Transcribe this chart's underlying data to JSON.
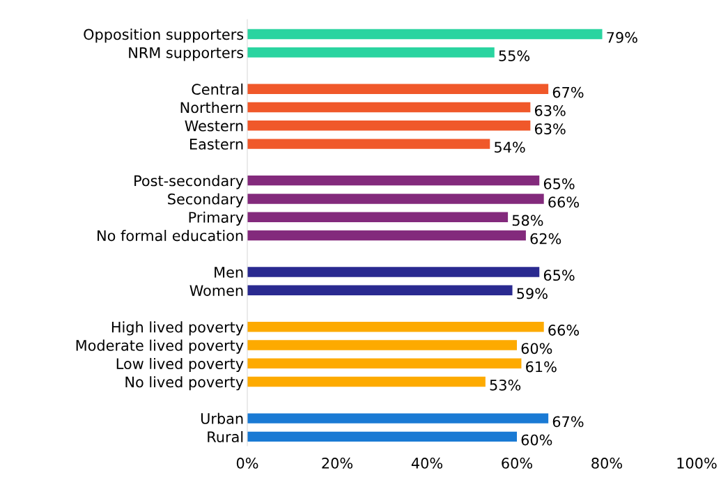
{
  "chart_data": {
    "type": "bar",
    "orientation": "horizontal",
    "categories": [
      "Opposition supporters",
      "NRM supporters",
      null,
      "Central",
      "Northern",
      "Western",
      "Eastern",
      null,
      "Post-secondary",
      "Secondary",
      "Primary",
      "No formal education",
      null,
      "Men",
      "Women",
      null,
      "High lived poverty",
      "Moderate lived poverty",
      "Low lived poverty",
      "No lived poverty",
      null,
      "Urban",
      "Rural"
    ],
    "values": [
      79,
      55,
      null,
      67,
      63,
      63,
      54,
      null,
      65,
      66,
      58,
      62,
      null,
      65,
      59,
      null,
      66,
      60,
      61,
      53,
      null,
      67,
      60
    ],
    "value_labels": [
      "79%",
      "55%",
      null,
      "67%",
      "63%",
      "63%",
      "54%",
      null,
      "65%",
      "66%",
      "58%",
      "62%",
      null,
      "65%",
      "59%",
      null,
      "66%",
      "60%",
      "61%",
      "53%",
      null,
      "67%",
      "60%"
    ],
    "colors": [
      "#2ad4a0",
      "#2ad4a0",
      null,
      "#f0582a",
      "#f0582a",
      "#f0582a",
      "#f0582a",
      null,
      "#832a7c",
      "#832a7c",
      "#832a7c",
      "#832a7c",
      null,
      "#2a2a90",
      "#2a2a90",
      null,
      "#fdaa00",
      "#fdaa00",
      "#fdaa00",
      "#fdaa00",
      null,
      "#1a7ad4",
      "#1a7ad4"
    ],
    "xlim": [
      0,
      100
    ],
    "xticks": [
      {
        "value": 0,
        "label": "0%"
      },
      {
        "value": 20,
        "label": "20%"
      },
      {
        "value": 40,
        "label": "40%"
      },
      {
        "value": 60,
        "label": "60%"
      },
      {
        "value": 80,
        "label": "80%"
      },
      {
        "value": 100,
        "label": "100%"
      }
    ],
    "grid": false,
    "legend": false
  }
}
